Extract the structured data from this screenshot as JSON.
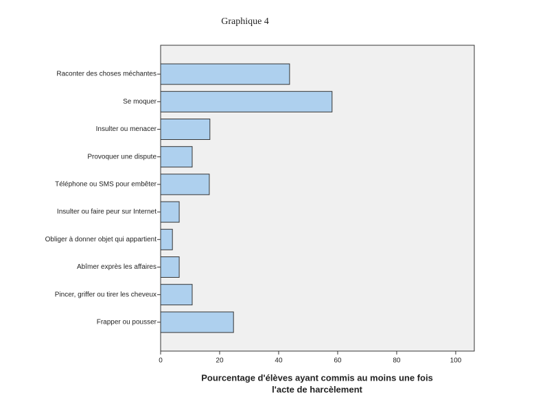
{
  "chart_data": {
    "type": "bar",
    "orientation": "horizontal",
    "title": "Graphique 4",
    "categories": [
      "Raconter des choses méchantes",
      "Se moquer",
      "Insulter ou menacer",
      "Provoquer une dispute",
      "Téléphone ou SMS pour embêter",
      "Insulter ou faire peur sur Internet",
      "Obliger à donner objet qui appartient",
      "Abîmer exprès les affaires",
      "Pincer, griffer ou tirer les cheveux",
      "Frapper ou pousser"
    ],
    "values": [
      43.7,
      58.1,
      16.7,
      10.7,
      16.5,
      6.3,
      4.0,
      6.3,
      10.7,
      24.7
    ],
    "color": "#aed0ee",
    "xlabel": [
      "Pourcentage d'élèves ayant commis au moins une fois",
      "l'acte de harcèlement"
    ],
    "xlim": [
      0,
      106.3
    ],
    "xticks": [
      0,
      20,
      40,
      60,
      80,
      100
    ],
    "grid": false
  }
}
